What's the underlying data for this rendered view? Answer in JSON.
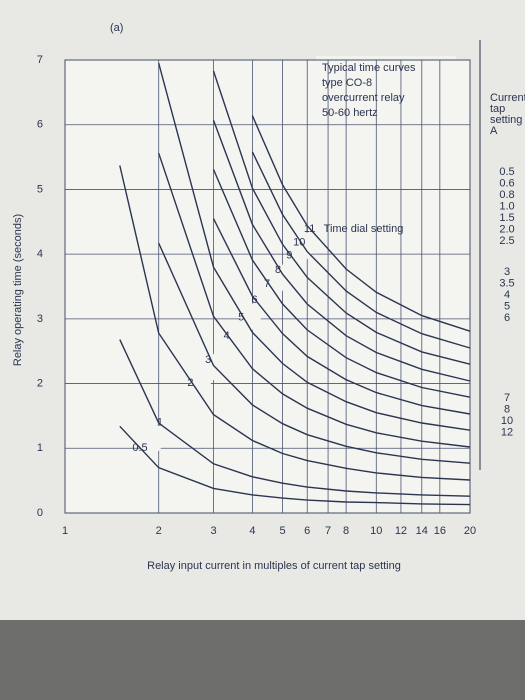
{
  "chart_data": {
    "type": "line",
    "panel_label": "(a)",
    "title": [
      "Typical time curves",
      "type CO-8",
      "overcurrent relay",
      "50-60 hertz"
    ],
    "annotation": "Time dial setting",
    "xlabel": "Relay input current in multiples of current tap setting",
    "ylabel": "Relay operating time (seconds)",
    "xscale": "log",
    "xlim": [
      1,
      20
    ],
    "ylim": [
      0,
      7
    ],
    "xticks": [
      1,
      2,
      3,
      4,
      5,
      6,
      7,
      8,
      10,
      12,
      14,
      16,
      20
    ],
    "yticks": [
      0,
      1,
      2,
      3,
      4,
      5,
      6,
      7
    ],
    "grid": true,
    "color": "#2b3550",
    "x": [
      1.5,
      2,
      3,
      4,
      5,
      6,
      8,
      10,
      14,
      20
    ],
    "series": [
      {
        "name": "0.5",
        "values": [
          1.34,
          0.7,
          0.38,
          0.28,
          0.23,
          0.2,
          0.17,
          0.16,
          0.14,
          0.13
        ]
      },
      {
        "name": "1",
        "values": [
          2.68,
          1.39,
          0.76,
          0.56,
          0.46,
          0.4,
          0.34,
          0.31,
          0.28,
          0.26
        ]
      },
      {
        "name": "2",
        "values": [
          5.37,
          2.78,
          1.52,
          1.12,
          0.92,
          0.81,
          0.69,
          0.62,
          0.55,
          0.51
        ]
      },
      {
        "name": "3",
        "values": [
          null,
          4.17,
          2.28,
          1.67,
          1.38,
          1.21,
          1.03,
          0.93,
          0.83,
          0.77
        ]
      },
      {
        "name": "4",
        "values": [
          null,
          5.56,
          3.04,
          2.23,
          1.84,
          1.62,
          1.37,
          1.24,
          1.11,
          1.02
        ]
      },
      {
        "name": "5",
        "values": [
          null,
          6.95,
          3.8,
          2.79,
          2.31,
          2.02,
          1.72,
          1.55,
          1.39,
          1.28
        ]
      },
      {
        "name": "6",
        "values": [
          null,
          null,
          4.55,
          3.35,
          2.77,
          2.42,
          2.06,
          1.86,
          1.66,
          1.53
        ]
      },
      {
        "name": "7",
        "values": [
          null,
          null,
          5.31,
          3.91,
          3.23,
          2.83,
          2.4,
          2.17,
          1.94,
          1.79
        ]
      },
      {
        "name": "8",
        "values": [
          null,
          null,
          6.07,
          4.46,
          3.69,
          3.23,
          2.74,
          2.48,
          2.22,
          2.04
        ]
      },
      {
        "name": "9",
        "values": [
          null,
          null,
          6.83,
          5.02,
          4.15,
          3.64,
          3.09,
          2.79,
          2.49,
          2.3
        ]
      },
      {
        "name": "10",
        "values": [
          null,
          null,
          null,
          5.58,
          4.61,
          4.04,
          3.43,
          3.1,
          2.77,
          2.55
        ]
      },
      {
        "name": "11",
        "values": [
          null,
          null,
          null,
          6.14,
          5.07,
          4.44,
          3.77,
          3.41,
          3.05,
          2.81
        ]
      }
    ],
    "tap_setting_label": [
      "Current",
      "tap",
      "setting",
      "A"
    ],
    "tap_settings": [
      [
        "0.5",
        "0.6",
        "0.8",
        "1.0",
        "1.5",
        "2.0",
        "2.5"
      ],
      [
        "3",
        "3.5",
        "4",
        "5",
        "6"
      ],
      [
        "7",
        "8",
        "10",
        "12"
      ]
    ]
  }
}
